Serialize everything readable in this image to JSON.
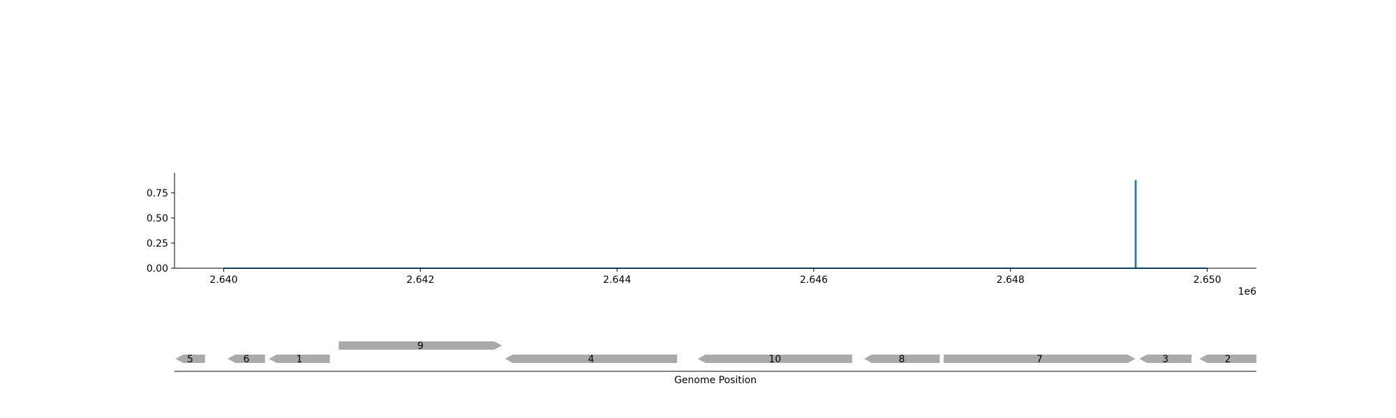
{
  "chart_data": [
    {
      "type": "line",
      "xlim": [
        2639500,
        2650500
      ],
      "ylim": [
        0,
        0.95
      ],
      "x_ticks": [
        2640000,
        2642000,
        2644000,
        2646000,
        2648000,
        2650000
      ],
      "x_tick_labels": [
        "2.640",
        "2.642",
        "2.644",
        "2.646",
        "2.648",
        "2.650"
      ],
      "x_offset_label": "1e6",
      "y_ticks": [
        0,
        0.25,
        0.5,
        0.75
      ],
      "y_tick_labels": [
        "0.00",
        "0.25",
        "0.50",
        "0.75"
      ],
      "series": [
        {
          "color": "#1f77b4",
          "points": [
            [
              2640000,
              0
            ],
            [
              2649270,
              0
            ],
            [
              2649270,
              0.87
            ],
            [
              2649275,
              0.87
            ],
            [
              2649275,
              0
            ],
            [
              2650000,
              0
            ]
          ]
        }
      ],
      "grid": false
    },
    {
      "type": "gene-track",
      "xlabel": "Genome Position",
      "xlim": [
        2639500,
        2650500
      ],
      "features": [
        {
          "label": "5",
          "start": 2639510,
          "end": 2639810,
          "strand": -1,
          "row": 0
        },
        {
          "label": "6",
          "start": 2640040,
          "end": 2640420,
          "strand": -1,
          "row": 0
        },
        {
          "label": "1",
          "start": 2640460,
          "end": 2641080,
          "strand": -1,
          "row": 0
        },
        {
          "label": "9",
          "start": 2641170,
          "end": 2642830,
          "strand": 1,
          "row": 1
        },
        {
          "label": "4",
          "start": 2642860,
          "end": 2644610,
          "strand": -1,
          "row": 0
        },
        {
          "label": "10",
          "start": 2644820,
          "end": 2646390,
          "strand": -1,
          "row": 0
        },
        {
          "label": "8",
          "start": 2646510,
          "end": 2647280,
          "strand": -1,
          "row": 0
        },
        {
          "label": "7",
          "start": 2647320,
          "end": 2649270,
          "strand": 1,
          "row": 0
        },
        {
          "label": "3",
          "start": 2649310,
          "end": 2649840,
          "strand": -1,
          "row": 0
        },
        {
          "label": "2",
          "start": 2649920,
          "end": 2650500,
          "strand": -1,
          "row": 0
        }
      ],
      "feature_color": "#aaaaaa"
    }
  ]
}
